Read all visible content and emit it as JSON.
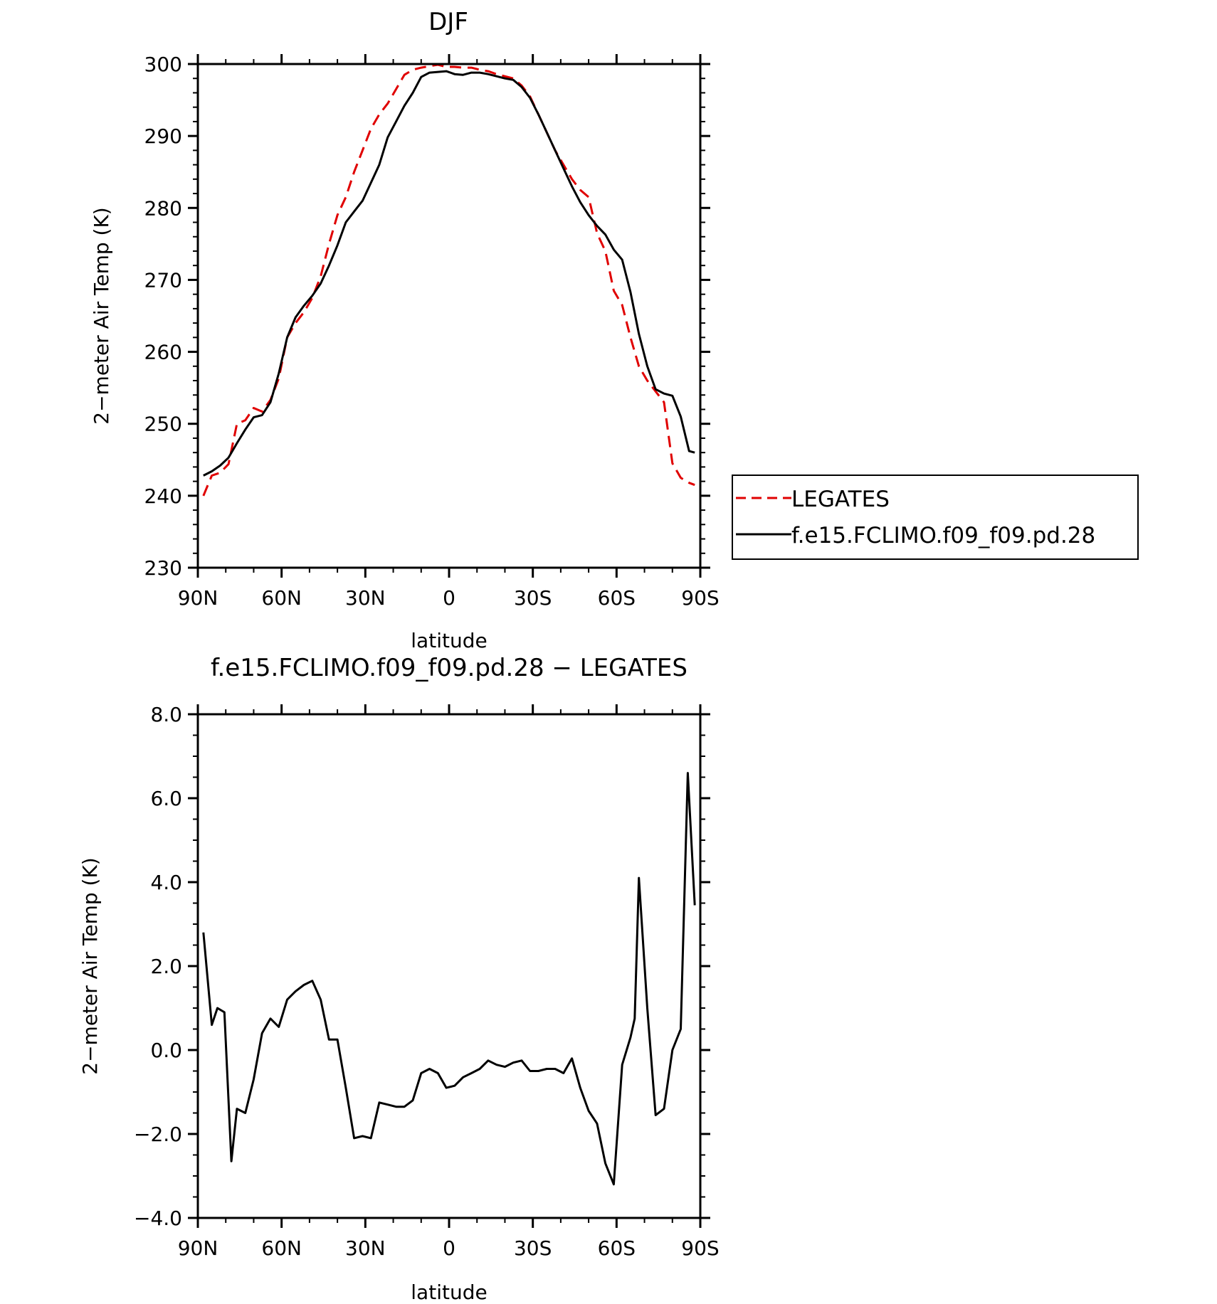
{
  "chart_data": [
    {
      "type": "line",
      "title": "DJF",
      "xlabel": "latitude",
      "ylabel": "2−meter Air Temp (K)",
      "xlim": [
        90,
        -90
      ],
      "ylim": [
        230,
        300
      ],
      "x_ticks": [
        {
          "value": 90,
          "label": "90N"
        },
        {
          "value": 60,
          "label": "60N"
        },
        {
          "value": 30,
          "label": "30N"
        },
        {
          "value": 0,
          "label": "0"
        },
        {
          "value": -30,
          "label": "30S"
        },
        {
          "value": -60,
          "label": "60S"
        },
        {
          "value": -90,
          "label": "90S"
        }
      ],
      "y_ticks": [
        {
          "value": 300,
          "label": "300"
        },
        {
          "value": 290,
          "label": "290"
        },
        {
          "value": 280,
          "label": "280"
        },
        {
          "value": 270,
          "label": "270"
        },
        {
          "value": 260,
          "label": "260"
        },
        {
          "value": 250,
          "label": "250"
        },
        {
          "value": 240,
          "label": "240"
        },
        {
          "value": 230,
          "label": "230"
        }
      ],
      "legend_position": "right",
      "series": [
        {
          "name": "LEGATES",
          "color": "#e00000",
          "dash": true,
          "x": [
            88,
            85,
            82,
            79,
            76,
            73,
            70,
            67,
            64,
            61,
            58,
            55,
            52,
            49,
            46,
            43,
            40,
            37,
            34,
            31,
            28,
            25,
            22,
            19,
            16,
            13,
            10,
            7,
            4,
            1,
            -2,
            -5,
            -8,
            -11,
            -14,
            -17,
            -20,
            -23,
            -26,
            -29,
            -32,
            -35,
            -38,
            -41,
            -44,
            -47,
            -50,
            -53,
            -56,
            -59,
            -62,
            -65,
            -68,
            -71,
            -74,
            -77,
            -80,
            -83,
            -86,
            -88
          ],
          "y": [
            240.0,
            242.8,
            243.2,
            244.4,
            250.0,
            250.5,
            252.2,
            251.7,
            253.3,
            256.3,
            262.0,
            264.0,
            265.5,
            267.5,
            270.5,
            275.0,
            279.0,
            281.5,
            285.0,
            288.0,
            291.0,
            293.0,
            294.5,
            296.5,
            298.5,
            299.2,
            299.5,
            299.7,
            299.9,
            299.6,
            299.6,
            299.5,
            299.5,
            299.2,
            299.0,
            298.6,
            298.3,
            298.0,
            297.0,
            295.5,
            293.0,
            290.5,
            288.0,
            286.0,
            284.0,
            282.5,
            281.5,
            276.5,
            274.0,
            268.5,
            266.5,
            262.0,
            258.0,
            256.0,
            254.5,
            253.0,
            244.5,
            242.5,
            241.8,
            241.5
          ]
        },
        {
          "name": "f.e15.FCLIMO.f09_f09.pd.28",
          "color": "#000000",
          "dash": false,
          "x": [
            88,
            85,
            82,
            79,
            76,
            73,
            70,
            67,
            64,
            61,
            58,
            55,
            52,
            49,
            46,
            43,
            40,
            37,
            34,
            31,
            28,
            25,
            22,
            19,
            16,
            13,
            10,
            7,
            4,
            1,
            -2,
            -5,
            -8,
            -11,
            -14,
            -17,
            -20,
            -23,
            -26,
            -29,
            -32,
            -35,
            -38,
            -41,
            -44,
            -47,
            -50,
            -53,
            -56,
            -59,
            -62,
            -65,
            -68,
            -71,
            -74,
            -77,
            -80,
            -83,
            -86,
            -88
          ],
          "y": [
            242.8,
            243.4,
            244.2,
            245.3,
            247.3,
            249.2,
            250.9,
            251.2,
            253.0,
            257.0,
            262.0,
            264.8,
            266.4,
            267.8,
            269.5,
            272.0,
            274.8,
            278.0,
            279.5,
            281.0,
            283.5,
            286.0,
            289.8,
            292.0,
            294.2,
            296.0,
            298.2,
            298.8,
            298.9,
            299.0,
            298.6,
            298.5,
            298.8,
            298.8,
            298.6,
            298.3,
            298.0,
            297.8,
            296.8,
            295.3,
            293.0,
            290.5,
            288.0,
            285.5,
            283.0,
            280.8,
            279.0,
            277.5,
            276.3,
            274.2,
            272.8,
            268.3,
            262.5,
            258.0,
            254.8,
            254.2,
            253.9,
            251.0,
            246.2,
            246.0
          ]
        }
      ]
    },
    {
      "type": "line",
      "title": "f.e15.FCLIMO.f09_f09.pd.28 − LEGATES",
      "xlabel": "latitude",
      "ylabel": "2−meter Air Temp (K)",
      "xlim": [
        90,
        -90
      ],
      "ylim": [
        -4.0,
        8.0
      ],
      "x_ticks": [
        {
          "value": 90,
          "label": "90N"
        },
        {
          "value": 60,
          "label": "60N"
        },
        {
          "value": 30,
          "label": "30N"
        },
        {
          "value": 0,
          "label": "0"
        },
        {
          "value": -30,
          "label": "30S"
        },
        {
          "value": -60,
          "label": "60S"
        },
        {
          "value": -90,
          "label": "90S"
        }
      ],
      "y_ticks": [
        {
          "value": 8.0,
          "label": "8.0"
        },
        {
          "value": 6.0,
          "label": "6.0"
        },
        {
          "value": 4.0,
          "label": "4.0"
        },
        {
          "value": 2.0,
          "label": "2.0"
        },
        {
          "value": 0.0,
          "label": "0.0"
        },
        {
          "value": -2.0,
          "label": "−2.0"
        },
        {
          "value": -4.0,
          "label": "−4.0"
        }
      ],
      "series": [
        {
          "color": "#000000",
          "dash": false,
          "x": [
            88,
            85,
            83,
            80.5,
            78,
            76,
            73,
            70,
            67,
            64,
            61,
            58,
            55,
            52,
            49,
            46,
            43,
            40,
            37,
            34,
            31,
            28,
            25,
            22,
            19,
            16,
            13,
            10,
            7,
            4,
            1,
            -2,
            -5,
            -8,
            -11,
            -14,
            -17,
            -20,
            -23,
            -26,
            -29,
            -32,
            -35,
            -38,
            -41,
            -44,
            -47,
            -50,
            -53,
            -56,
            -59,
            -62,
            -65,
            -66.5,
            -68,
            -71,
            -74,
            -77,
            -80,
            -83,
            -85.5,
            -88
          ],
          "y": [
            2.8,
            0.6,
            1.0,
            0.9,
            -2.65,
            -1.4,
            -1.5,
            -0.7,
            0.4,
            0.75,
            0.55,
            1.2,
            1.4,
            1.55,
            1.65,
            1.2,
            0.25,
            0.25,
            -0.9,
            -2.1,
            -2.05,
            -2.1,
            -1.25,
            -1.3,
            -1.35,
            -1.35,
            -1.2,
            -0.55,
            -0.45,
            -0.55,
            -0.9,
            -0.85,
            -0.65,
            -0.55,
            -0.45,
            -0.25,
            -0.35,
            -0.4,
            -0.3,
            -0.25,
            -0.5,
            -0.5,
            -0.45,
            -0.45,
            -0.55,
            -0.2,
            -0.9,
            -1.45,
            -1.75,
            -2.7,
            -3.2,
            -0.35,
            0.3,
            0.75,
            4.1,
            1.0,
            -1.55,
            -1.4,
            0.0,
            0.5,
            6.6,
            3.45
          ]
        }
      ]
    }
  ]
}
